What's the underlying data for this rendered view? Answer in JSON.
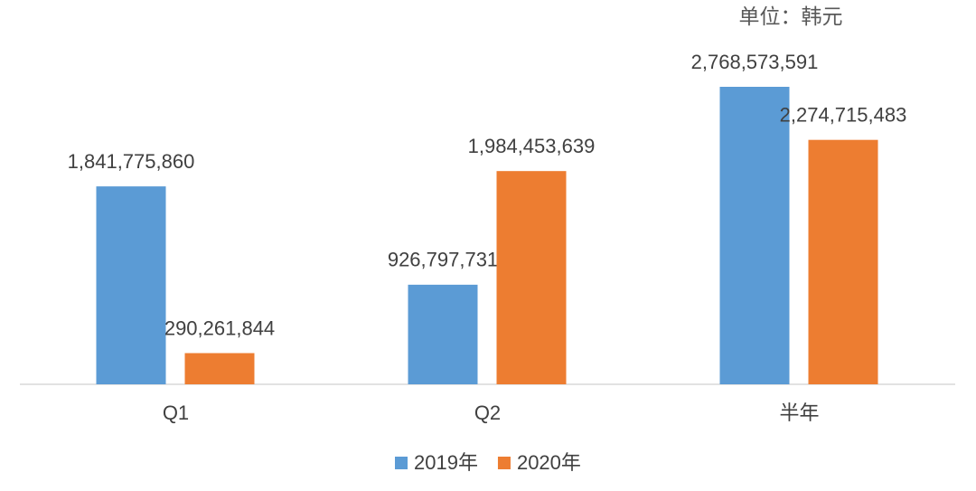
{
  "chart_data": {
    "type": "bar",
    "annotation": "单位：韩元",
    "categories": [
      "Q1",
      "Q2",
      "半年"
    ],
    "series": [
      {
        "name": "2019年",
        "color": "#5b9bd5",
        "values": [
          1841775860,
          926797731,
          2768573591
        ],
        "value_labels": [
          "1,841,775,860",
          "926,797,731",
          "2,768,573,591"
        ]
      },
      {
        "name": "2020年",
        "color": "#ed7d31",
        "values": [
          290261844,
          1984453639,
          2274715483
        ],
        "value_labels": [
          "290,261,844",
          "1,984,453,639",
          "2,274,715,483"
        ]
      }
    ],
    "ylim": [
      0,
      3000000000
    ],
    "legend": "bottom"
  }
}
